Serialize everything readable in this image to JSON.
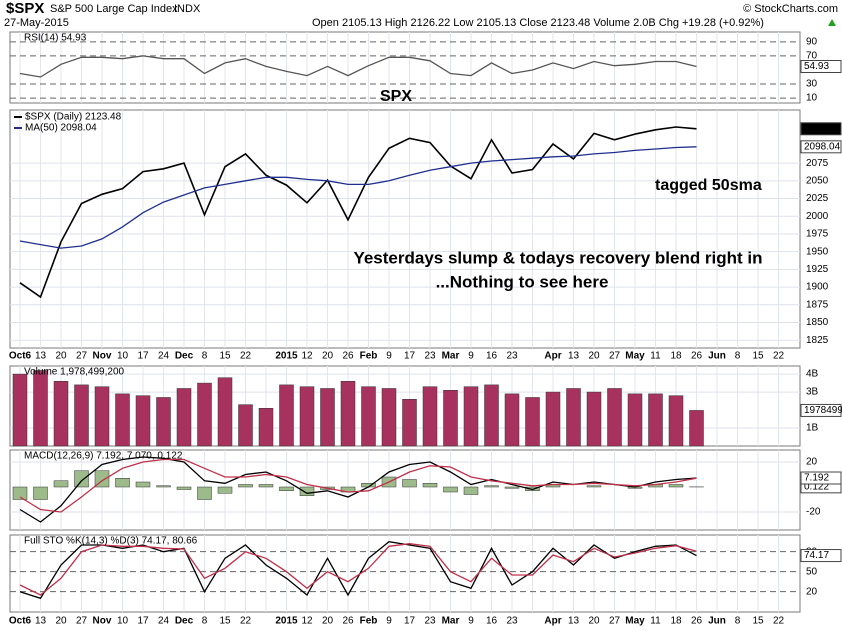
{
  "header": {
    "symbol": "$SPX",
    "name": "S&P 500 Large Cap Index",
    "exchange": "INDX",
    "date": "27-May-2015",
    "quote": "Open 2105.13 High 2126.22 Low 2105.13 Close 2123.48 Volume 2.0B Chg +19.28 (+0.92%)",
    "copyright": "© StockCharts.com"
  },
  "chart_data": [
    {
      "type": "line",
      "title": "RSI(14) 54.93",
      "ylim": [
        3,
        104
      ],
      "yticks": [
        10,
        30,
        70,
        90
      ],
      "grid": true,
      "grid_style": "dashed",
      "series": [
        {
          "name": "RSI(14)",
          "color": "#555555",
          "box": "#ffffff",
          "values": [
            45,
            40,
            58,
            68,
            68,
            66,
            70,
            66,
            66,
            45,
            60,
            66,
            55,
            48,
            42,
            55,
            42,
            56,
            68,
            68,
            63,
            45,
            42,
            60,
            45,
            50,
            60,
            52,
            62,
            56,
            58,
            62,
            62,
            54.93,
            null,
            null,
            null,
            null
          ]
        }
      ]
    },
    {
      "type": "line",
      "ylim": [
        1814,
        2150
      ],
      "yticks": [
        1825,
        1850,
        1875,
        1900,
        1925,
        1950,
        1975,
        2000,
        2025,
        2050,
        2075
      ],
      "grid": true,
      "categories": [
        "Oct6",
        "13",
        "20",
        "27",
        "Nov",
        "10",
        "17",
        "24",
        "Dec",
        "8",
        "15",
        "22",
        null,
        "2015",
        "12",
        "20",
        "26",
        "Feb",
        "9",
        "17",
        "23",
        "Mar",
        "9",
        "16",
        "23",
        null,
        "Apr",
        "13",
        "20",
        "27",
        "May",
        "11",
        "18",
        "26",
        "Jun",
        "8",
        "15",
        "22"
      ],
      "series": [
        {
          "name": "$SPX (Daily) 2123.48",
          "color": "#000000",
          "box": "#000000",
          "values": [
            1906,
            1886,
            1964,
            2018,
            2031,
            2039,
            2063,
            2067,
            2075,
            2002,
            2070,
            2088,
            2058,
            2044,
            2019,
            2051,
            1995,
            2055,
            2096,
            2110,
            2104,
            2071,
            2053,
            2108,
            2061,
            2066,
            2102,
            2081,
            2117,
            2108,
            2116,
            2122,
            2126,
            2123.48,
            null,
            null,
            null,
            null
          ]
        },
        {
          "name": "MA(50) 2098.04",
          "color": "#1f2f8f",
          "box": "#ffffff",
          "values": [
            1965,
            1960,
            1955,
            1958,
            1968,
            1985,
            2005,
            2020,
            2030,
            2040,
            2045,
            2050,
            2055,
            2055,
            2052,
            2050,
            2045,
            2045,
            2050,
            2058,
            2065,
            2070,
            2075,
            2078,
            2080,
            2082,
            2084,
            2085,
            2088,
            2090,
            2093,
            2095,
            2097,
            2098.04,
            null,
            null,
            null,
            null
          ]
        }
      ],
      "annotations": [
        {
          "text": "SPX",
          "color": "#e43fd6"
        },
        {
          "text": "Yesterdays slump & todays recovery blend right in",
          "color": "#1a1ad0"
        },
        {
          "text": "...Nothing to see here",
          "color": "#1a1ad0"
        },
        {
          "text": "tagged 50sma",
          "color": "#5a9a1a"
        }
      ]
    },
    {
      "type": "bar",
      "title": "Volume 1,978,499,200",
      "ylim": [
        0,
        4.45
      ],
      "yticks": [
        {
          "value": 1,
          "label": "1B"
        },
        {
          "value": 3,
          "label": "3B"
        },
        {
          "value": 4,
          "label": "4B"
        }
      ],
      "grid": true,
      "series": [
        {
          "name": "Volume",
          "color": "#a8325e",
          "style": "bar",
          "box": "#ffffff",
          "values": [
            4.0,
            4.2,
            3.6,
            3.4,
            3.3,
            2.9,
            2.8,
            2.7,
            3.2,
            3.5,
            3.8,
            2.3,
            2.1,
            3.4,
            3.3,
            3.2,
            3.6,
            3.3,
            3.2,
            2.6,
            3.3,
            3.1,
            3.3,
            3.4,
            2.9,
            2.7,
            3.0,
            3.2,
            3.0,
            3.2,
            2.9,
            2.9,
            2.8,
            1.978499,
            null,
            null,
            null,
            null
          ],
          "value_labels": [
            null,
            null,
            null,
            null,
            null,
            null,
            null,
            null,
            null,
            null,
            null,
            null,
            null,
            null,
            null,
            null,
            null,
            null,
            null,
            null,
            null,
            null,
            null,
            null,
            null,
            null,
            null,
            null,
            null,
            null,
            null,
            null,
            null,
            "1978499",
            null,
            null,
            null,
            null
          ]
        }
      ]
    },
    {
      "type": "line",
      "title": "MACD(12,26,9) 7.192, 7.070, 0.122",
      "ylim": [
        -34.4,
        29.6
      ],
      "yticks": [
        -20,
        20
      ],
      "grid": true,
      "series": [
        {
          "name": "Histogram",
          "color": "#9dbb8a",
          "style": "bar",
          "box": "#ffffff",
          "values": [
            -10,
            -10,
            5,
            13,
            13,
            7,
            4,
            1,
            -2,
            -10,
            -5,
            2,
            2,
            -3,
            -7,
            -2,
            -4,
            3,
            8,
            6,
            3,
            -4,
            -6,
            1,
            -1,
            -3,
            2,
            0,
            1,
            0,
            -1,
            2,
            2,
            0.122,
            null,
            null,
            null,
            null
          ]
        },
        {
          "name": "MACD",
          "color": "#000000",
          "box": "#ffffff",
          "values": [
            -18,
            -28,
            -15,
            5,
            18,
            22,
            24,
            23,
            20,
            5,
            3,
            10,
            12,
            5,
            -5,
            -3,
            -8,
            0,
            12,
            18,
            20,
            12,
            2,
            6,
            2,
            -2,
            4,
            2,
            4,
            2,
            0,
            4,
            6,
            7.192,
            null,
            null,
            null,
            null
          ]
        },
        {
          "name": "Signal",
          "color": "#c0304a",
          "values": [
            -8,
            -18,
            -20,
            -8,
            5,
            15,
            20,
            22,
            22,
            15,
            8,
            8,
            10,
            8,
            2,
            -1,
            -4,
            -3,
            4,
            12,
            17,
            16,
            8,
            5,
            3,
            1,
            2,
            2,
            3,
            2,
            1,
            2,
            4,
            7.07,
            null,
            null,
            null,
            null
          ]
        }
      ]
    },
    {
      "type": "line",
      "title": "Full STO %K(14,3) %D(3) 74.17, 80.66",
      "ylim": [
        -10.5,
        105
      ],
      "yticks": [
        20,
        50,
        80
      ],
      "grid": true,
      "grid_style": "dashed",
      "series": [
        {
          "name": "%K",
          "color": "#000000",
          "box": "#ffffff",
          "values": [
            20,
            10,
            60,
            90,
            90,
            85,
            90,
            80,
            85,
            20,
            70,
            90,
            60,
            40,
            15,
            70,
            15,
            70,
            95,
            90,
            85,
            35,
            25,
            85,
            30,
            50,
            85,
            60,
            90,
            70,
            80,
            88,
            90,
            74.17,
            null,
            null,
            null,
            null
          ]
        },
        {
          "name": "%D",
          "color": "#c0304a",
          "values": [
            30,
            15,
            40,
            80,
            90,
            88,
            88,
            85,
            84,
            40,
            55,
            80,
            70,
            50,
            25,
            50,
            35,
            55,
            88,
            92,
            88,
            50,
            35,
            70,
            45,
            45,
            75,
            65,
            85,
            72,
            78,
            85,
            89,
            80.66,
            null,
            null,
            null,
            null
          ]
        }
      ]
    }
  ]
}
